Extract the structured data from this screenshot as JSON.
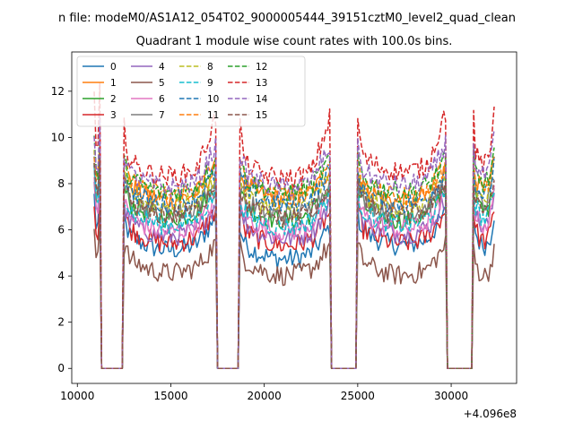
{
  "chart_data": {
    "type": "line",
    "suptitle": "n file: modeM0/AS1A12_054T02_9000005444_39151cztM0_level2_quad_clean",
    "title": "Quadrant 1 module wise count rates with 100.0s bins.",
    "xlabel": "",
    "ylabel": "",
    "offset_text": "+4.096e8",
    "xlim": [
      9700,
      33500
    ],
    "ylim": [
      -0.65,
      13.7
    ],
    "xticks": [
      10000,
      15000,
      20000,
      25000,
      30000
    ],
    "xtick_labels": [
      "10000",
      "15000",
      "20000",
      "25000",
      "30000"
    ],
    "yticks": [
      0,
      2,
      4,
      6,
      8,
      10,
      12
    ],
    "ytick_labels": [
      "0",
      "2",
      "4",
      "6",
      "8",
      "10",
      "12"
    ],
    "legend_position": "upper-left",
    "segments": [
      {
        "start": 10900,
        "end": 11200
      },
      {
        "start": 12500,
        "end": 17400
      },
      {
        "start": 18700,
        "end": 23500
      },
      {
        "start": 25000,
        "end": 29700
      },
      {
        "start": 31200,
        "end": 32300
      }
    ],
    "gap_value": 0,
    "series": [
      {
        "name": "0",
        "color": "#1f77b4",
        "dash": false,
        "segment_levels": [
          6.4,
          5.4,
          5.0,
          5.6,
          5.6
        ],
        "edge_rise": 0.6
      },
      {
        "name": "1",
        "color": "#ff7f0e",
        "dash": false,
        "segment_levels": [
          8.3,
          7.6,
          7.6,
          7.5,
          8.0
        ],
        "edge_rise": 0.5
      },
      {
        "name": "2",
        "color": "#2ca02c",
        "dash": false,
        "segment_levels": [
          7.7,
          6.8,
          6.7,
          6.7,
          7.1
        ],
        "edge_rise": 0.6
      },
      {
        "name": "3",
        "color": "#d62728",
        "dash": false,
        "segment_levels": [
          6.1,
          5.7,
          5.6,
          5.7,
          5.8
        ],
        "edge_rise": 0.6
      },
      {
        "name": "4",
        "color": "#9467bd",
        "dash": false,
        "segment_levels": [
          7.2,
          6.0,
          5.9,
          6.1,
          6.4
        ],
        "edge_rise": 0.6
      },
      {
        "name": "5",
        "color": "#8c564b",
        "dash": false,
        "segment_levels": [
          5.3,
          4.4,
          4.3,
          4.3,
          4.3
        ],
        "edge_rise": 0.5
      },
      {
        "name": "6",
        "color": "#e377c2",
        "dash": false,
        "segment_levels": [
          6.9,
          6.2,
          6.2,
          6.3,
          6.5
        ],
        "edge_rise": 0.6
      },
      {
        "name": "7",
        "color": "#7f7f7f",
        "dash": false,
        "segment_levels": [
          7.9,
          7.0,
          6.9,
          7.0,
          7.4
        ],
        "edge_rise": 0.6
      },
      {
        "name": "8",
        "color": "#bcbd22",
        "dash": true,
        "segment_levels": [
          8.0,
          7.3,
          7.2,
          7.2,
          7.6
        ],
        "edge_rise": 0.6
      },
      {
        "name": "9",
        "color": "#17becf",
        "dash": true,
        "segment_levels": [
          7.5,
          6.5,
          6.4,
          6.5,
          6.8
        ],
        "edge_rise": 0.6
      },
      {
        "name": "10",
        "color": "#1f77b4",
        "dash": true,
        "segment_levels": [
          8.2,
          7.4,
          7.4,
          7.4,
          7.8
        ],
        "edge_rise": 0.6
      },
      {
        "name": "11",
        "color": "#ff7f0e",
        "dash": true,
        "segment_levels": [
          8.4,
          7.8,
          7.8,
          7.7,
          8.1
        ],
        "edge_rise": 0.6
      },
      {
        "name": "12",
        "color": "#2ca02c",
        "dash": true,
        "segment_levels": [
          8.7,
          7.9,
          7.9,
          7.9,
          8.3
        ],
        "edge_rise": 0.6
      },
      {
        "name": "13",
        "color": "#d62728",
        "dash": true,
        "segment_levels": [
          9.6,
          8.6,
          8.5,
          8.8,
          9.1
        ],
        "edge_rise": 1.8
      },
      {
        "name": "14",
        "color": "#9467bd",
        "dash": true,
        "segment_levels": [
          9.0,
          8.1,
          8.1,
          8.2,
          8.6
        ],
        "edge_rise": 1.0
      },
      {
        "name": "15",
        "color": "#8c564b",
        "dash": true,
        "segment_levels": [
          7.7,
          6.9,
          6.8,
          6.9,
          7.2
        ],
        "edge_rise": 0.6
      }
    ]
  }
}
